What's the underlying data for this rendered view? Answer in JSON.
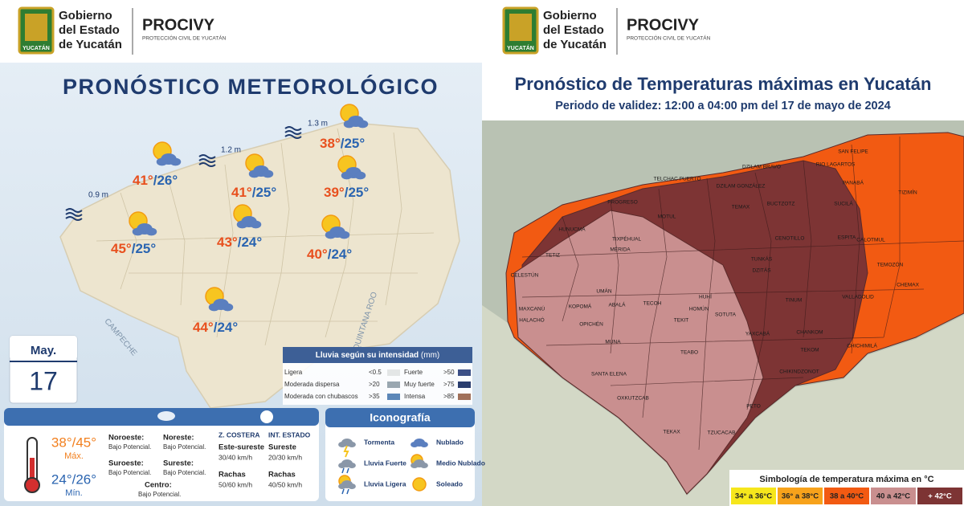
{
  "header": {
    "org": [
      "Gobierno",
      "del Estado",
      "de Yucatán"
    ],
    "brand": "PROCIVY",
    "subtitle": "PROTECCIÓN CIVIL DE YUCATÁN",
    "shield": "YUCATÁN"
  },
  "left": {
    "title": "PRONÓSTICO METEOROLÓGICO",
    "waves": [
      "0.9 m",
      "1.2 m",
      "1.3 m"
    ],
    "forecasts": [
      {
        "max": "41°",
        "min": "/26°"
      },
      {
        "max": "41°",
        "min": "/25°"
      },
      {
        "max": "38°",
        "min": "/25°"
      },
      {
        "max": "39°",
        "min": "/25°"
      },
      {
        "max": "43°",
        "min": "/24°"
      },
      {
        "max": "45°",
        "min": "/25°"
      },
      {
        "max": "40°",
        "min": "/24°"
      },
      {
        "max": "44°",
        "min": "/24°"
      }
    ],
    "states": [
      "CAMPECHE",
      "QUINTANA ROO"
    ],
    "date": {
      "month": "May.",
      "day": "17"
    },
    "rain_legend": {
      "title": "Lluvia según su intensidad",
      "unit": "(mm)",
      "items": [
        {
          "label": "Ligera",
          "threshold": "<0.5",
          "color": "#e3e6e6"
        },
        {
          "label": "Fuerte",
          "threshold": ">50",
          "color": "#3b4f86"
        },
        {
          "label": "Moderada dispersa",
          "threshold": ">20",
          "color": "#9aa7b0"
        },
        {
          "label": "Muy fuerte",
          "threshold": ">75",
          "color": "#2a3d6e"
        },
        {
          "label": "Moderada con chubascos",
          "threshold": ">35",
          "color": "#5c87b8"
        },
        {
          "label": "Intensa",
          "threshold": ">85",
          "color": "#a0705a"
        }
      ]
    },
    "info": {
      "max": "38°/45°",
      "max_label": "Máx.",
      "min": "24°/26°",
      "min_label": "Mín.",
      "regions": [
        {
          "name": "Noroeste:",
          "value": "Bajo Potencial."
        },
        {
          "name": "Noreste:",
          "value": "Bajo Potencial."
        },
        {
          "name": "Suroeste:",
          "value": "Bajo Potencial."
        },
        {
          "name": "Sureste:",
          "value": "Bajo Potencial."
        },
        {
          "name": "Centro:",
          "value": "Bajo Potencial."
        }
      ],
      "wind": [
        {
          "heading": "Z. COSTERA",
          "direction": "Este-sureste",
          "speed": "30/40 km/h",
          "gust_label": "Rachas",
          "gust": "50/60 km/h"
        },
        {
          "heading": "INT. ESTADO",
          "direction": "Sureste",
          "speed": "20/30 km/h",
          "gust_label": "Rachas",
          "gust": "40/50 km/h"
        }
      ]
    },
    "icons": {
      "title": "Iconografía",
      "items": [
        "Tormenta",
        "Nublado",
        "Lluvia Fuerte",
        "Medio Nublado",
        "Lluvia Ligera",
        "Soleado"
      ]
    }
  },
  "right": {
    "title": "Pronóstico de Temperaturas máximas en Yucatán",
    "subtitle": "Periodo de validez: 12:00 a 04:00 pm del 17 de mayo de 2024",
    "places": [
      "RIO LAGARTOS",
      "SAN FELIPE",
      "DZILAM BRAVO",
      "TELCHAC PUERTO",
      "PANABÁ",
      "TIZIMÍN",
      "DZILAM GONZÁLEZ",
      "BUCTZOTZ",
      "SUCILÁ",
      "PROGRESO",
      "MOTUL",
      "TEMAX",
      "HUNUCMÁ",
      "ESPITA",
      "CENOTILLO",
      "CALOTMUL",
      "TIXPÉHUAL",
      "MÉRIDA",
      "TETIZ",
      "CELESTÚN",
      "TEMOZÓN",
      "TUNKÁS",
      "DZITÁS",
      "UMÁN",
      "CHEMAX",
      "VALLADOLID",
      "TINUM",
      "MAXCANÚ",
      "KOPOMÁ",
      "ABALÁ",
      "TECOH",
      "HOMÚN",
      "HUHÍ",
      "SOTUTA",
      "HALACHÓ",
      "OPICHÉN",
      "TEKIT",
      "YAXCABÁ",
      "CHANKOM",
      "TEKOM",
      "CHICHIMILÁ",
      "MUNA",
      "TEABO",
      "SANTA ELENA",
      "CHIKINDZONOT",
      "OXKUTZCAB",
      "PETO",
      "TEKAX",
      "TZUCACAB"
    ],
    "legend": {
      "title": "Simbología de temperatura máxima en °C",
      "items": [
        {
          "label": "34° a 36°C",
          "color": "#f6e61c"
        },
        {
          "label": "36° a 38°C",
          "color": "#f7a21b"
        },
        {
          "label": "38 a 40°C",
          "color": "#f25a12"
        },
        {
          "label": "40 a 42°C",
          "color": "#c98f8f"
        },
        {
          "label": "+ 42°C",
          "color": "#7d3434"
        }
      ]
    }
  }
}
